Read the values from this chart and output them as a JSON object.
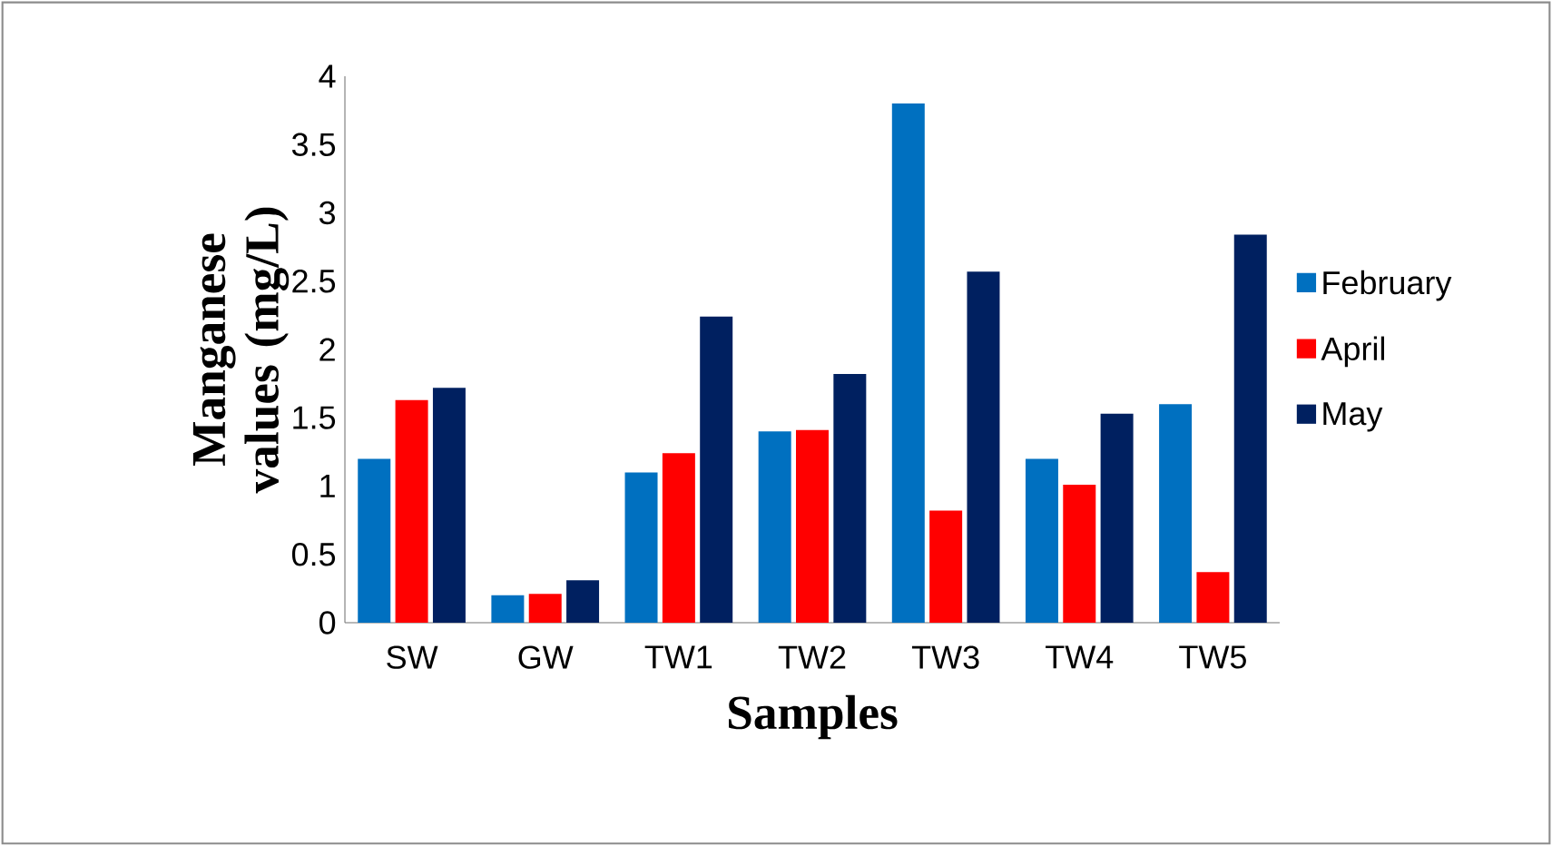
{
  "chart_data": {
    "type": "bar",
    "xlabel": "Samples",
    "ylabel": "Manganese values (mg/L)",
    "categories": [
      "SW",
      "GW",
      "TW1",
      "TW2",
      "TW3",
      "TW4",
      "TW5"
    ],
    "series": [
      {
        "name": "February",
        "color": "#0070c0",
        "values": [
          1.2,
          0.2,
          1.1,
          1.4,
          3.8,
          1.2,
          1.6
        ]
      },
      {
        "name": "April",
        "color": "#ff0000",
        "values": [
          1.63,
          0.21,
          1.24,
          1.41,
          0.82,
          1.01,
          0.37
        ]
      },
      {
        "name": "May",
        "color": "#002060",
        "values": [
          1.72,
          0.31,
          2.24,
          1.82,
          2.57,
          1.53,
          2.84
        ]
      }
    ],
    "ylim": [
      0,
      4
    ],
    "yticks": [
      0,
      0.5,
      1,
      1.5,
      2,
      2.5,
      3,
      3.5,
      4
    ],
    "grid": false,
    "legend": "right"
  }
}
